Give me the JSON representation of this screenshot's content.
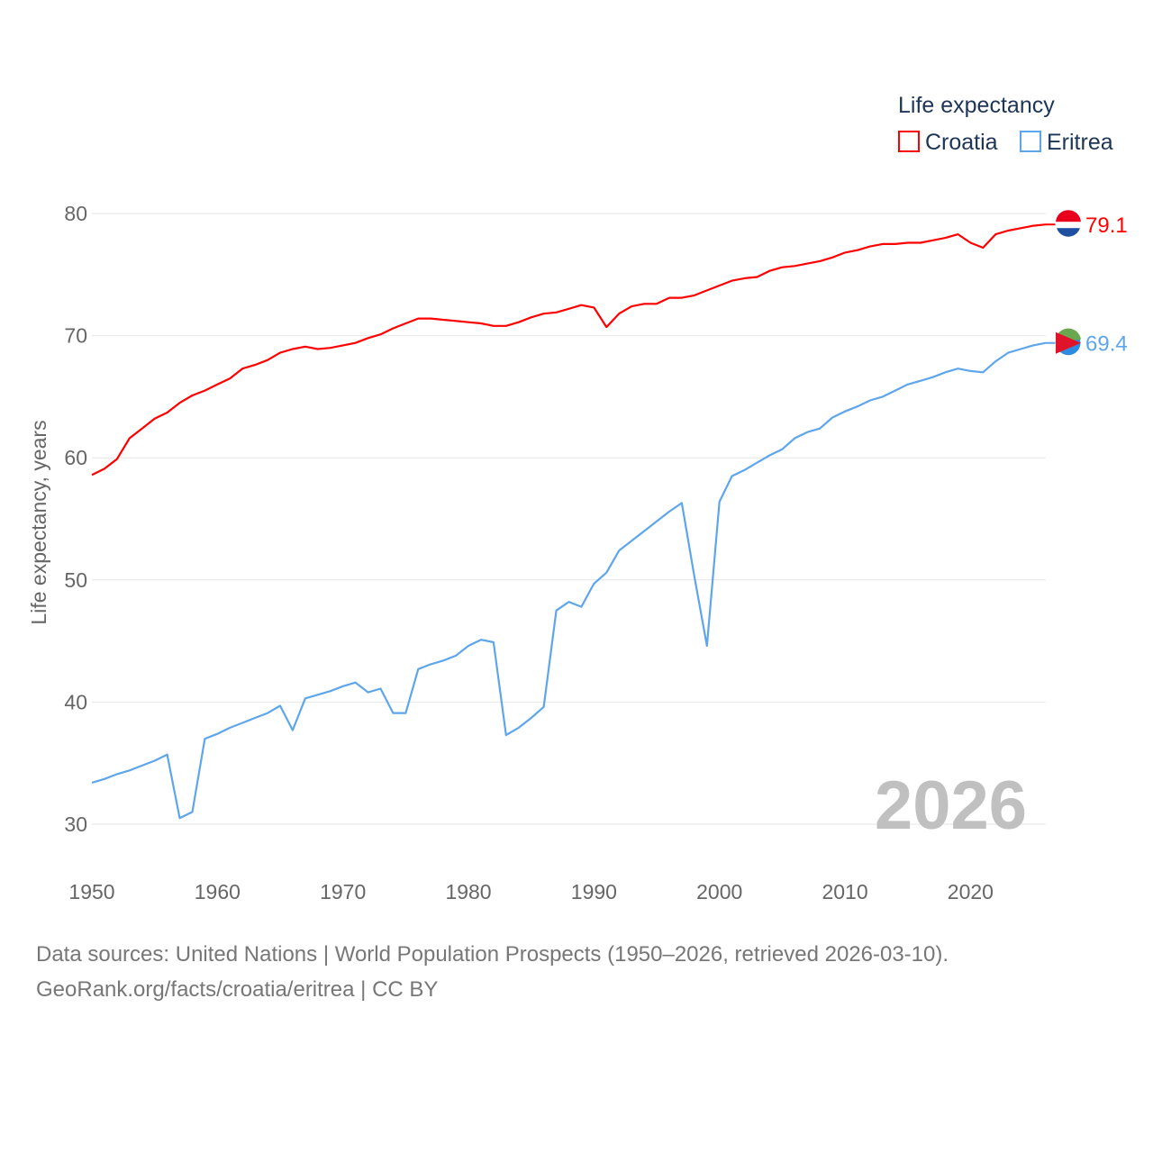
{
  "chart_data": {
    "type": "line",
    "title": "",
    "xlabel": "",
    "ylabel": "Life expectancy, years",
    "xlim": [
      1950,
      2026
    ],
    "ylim": [
      30,
      80
    ],
    "xticks": [
      1950,
      1960,
      1970,
      1980,
      1990,
      2000,
      2010,
      2020
    ],
    "yticks": [
      30,
      40,
      50,
      60,
      70,
      80
    ],
    "grid": true,
    "legend": {
      "title": "Life expectancy",
      "placement": "top-right"
    },
    "year_label": "2026",
    "x": [
      1950,
      1951,
      1952,
      1953,
      1954,
      1955,
      1956,
      1957,
      1958,
      1959,
      1960,
      1961,
      1962,
      1963,
      1964,
      1965,
      1966,
      1967,
      1968,
      1969,
      1970,
      1971,
      1972,
      1973,
      1974,
      1975,
      1976,
      1977,
      1978,
      1979,
      1980,
      1981,
      1982,
      1983,
      1984,
      1985,
      1986,
      1987,
      1988,
      1989,
      1990,
      1991,
      1992,
      1993,
      1994,
      1995,
      1996,
      1997,
      1998,
      1999,
      2000,
      2001,
      2002,
      2003,
      2004,
      2005,
      2006,
      2007,
      2008,
      2009,
      2010,
      2011,
      2012,
      2013,
      2014,
      2015,
      2016,
      2017,
      2018,
      2019,
      2020,
      2021,
      2022,
      2023,
      2024,
      2025,
      2026
    ],
    "series": [
      {
        "name": "Croatia",
        "color": "#ff0000",
        "end_label": "79.1",
        "values": [
          58.6,
          59.1,
          59.9,
          61.6,
          62.4,
          63.2,
          63.7,
          64.5,
          65.1,
          65.5,
          66.0,
          66.5,
          67.3,
          67.6,
          68.0,
          68.6,
          68.9,
          69.1,
          68.9,
          69.0,
          69.2,
          69.4,
          69.8,
          70.1,
          70.6,
          71.0,
          71.4,
          71.4,
          71.3,
          71.2,
          71.1,
          71.0,
          70.8,
          70.8,
          71.1,
          71.5,
          71.8,
          71.9,
          72.2,
          72.5,
          72.3,
          70.7,
          71.8,
          72.4,
          72.6,
          72.6,
          73.1,
          73.1,
          73.3,
          73.7,
          74.1,
          74.5,
          74.7,
          74.8,
          75.3,
          75.6,
          75.7,
          75.9,
          76.1,
          76.4,
          76.8,
          77.0,
          77.3,
          77.5,
          77.5,
          77.6,
          77.6,
          77.8,
          78.0,
          78.3,
          77.6,
          77.2,
          78.3,
          78.6,
          78.8,
          79.0,
          79.1
        ]
      },
      {
        "name": "Eritrea",
        "color": "#5ea6ec",
        "end_label": "69.4",
        "values": [
          33.4,
          33.7,
          34.1,
          34.4,
          34.8,
          35.2,
          35.7,
          30.5,
          31.0,
          37.0,
          37.4,
          37.9,
          38.3,
          38.7,
          39.1,
          39.7,
          37.7,
          40.3,
          40.6,
          40.9,
          41.3,
          41.6,
          40.8,
          41.1,
          39.1,
          39.1,
          42.7,
          43.1,
          43.4,
          43.8,
          44.6,
          45.1,
          44.9,
          37.3,
          37.9,
          38.7,
          39.6,
          47.5,
          48.2,
          47.8,
          49.7,
          50.6,
          52.4,
          53.2,
          54.0,
          54.8,
          55.6,
          56.3,
          50.3,
          44.6,
          56.4,
          58.5,
          59.0,
          59.6,
          60.2,
          60.7,
          61.6,
          62.1,
          62.4,
          63.3,
          63.8,
          64.2,
          64.7,
          65.0,
          65.5,
          66.0,
          66.3,
          66.6,
          67.0,
          67.3,
          67.1,
          67.0,
          67.9,
          68.6,
          68.9,
          69.2,
          69.4
        ]
      }
    ]
  },
  "footer": {
    "line1": "Data sources: United Nations | World Population Prospects (1950–2026, retrieved 2026-03-10).",
    "line2": "GeoRank.org/facts/croatia/eritrea | CC BY"
  }
}
